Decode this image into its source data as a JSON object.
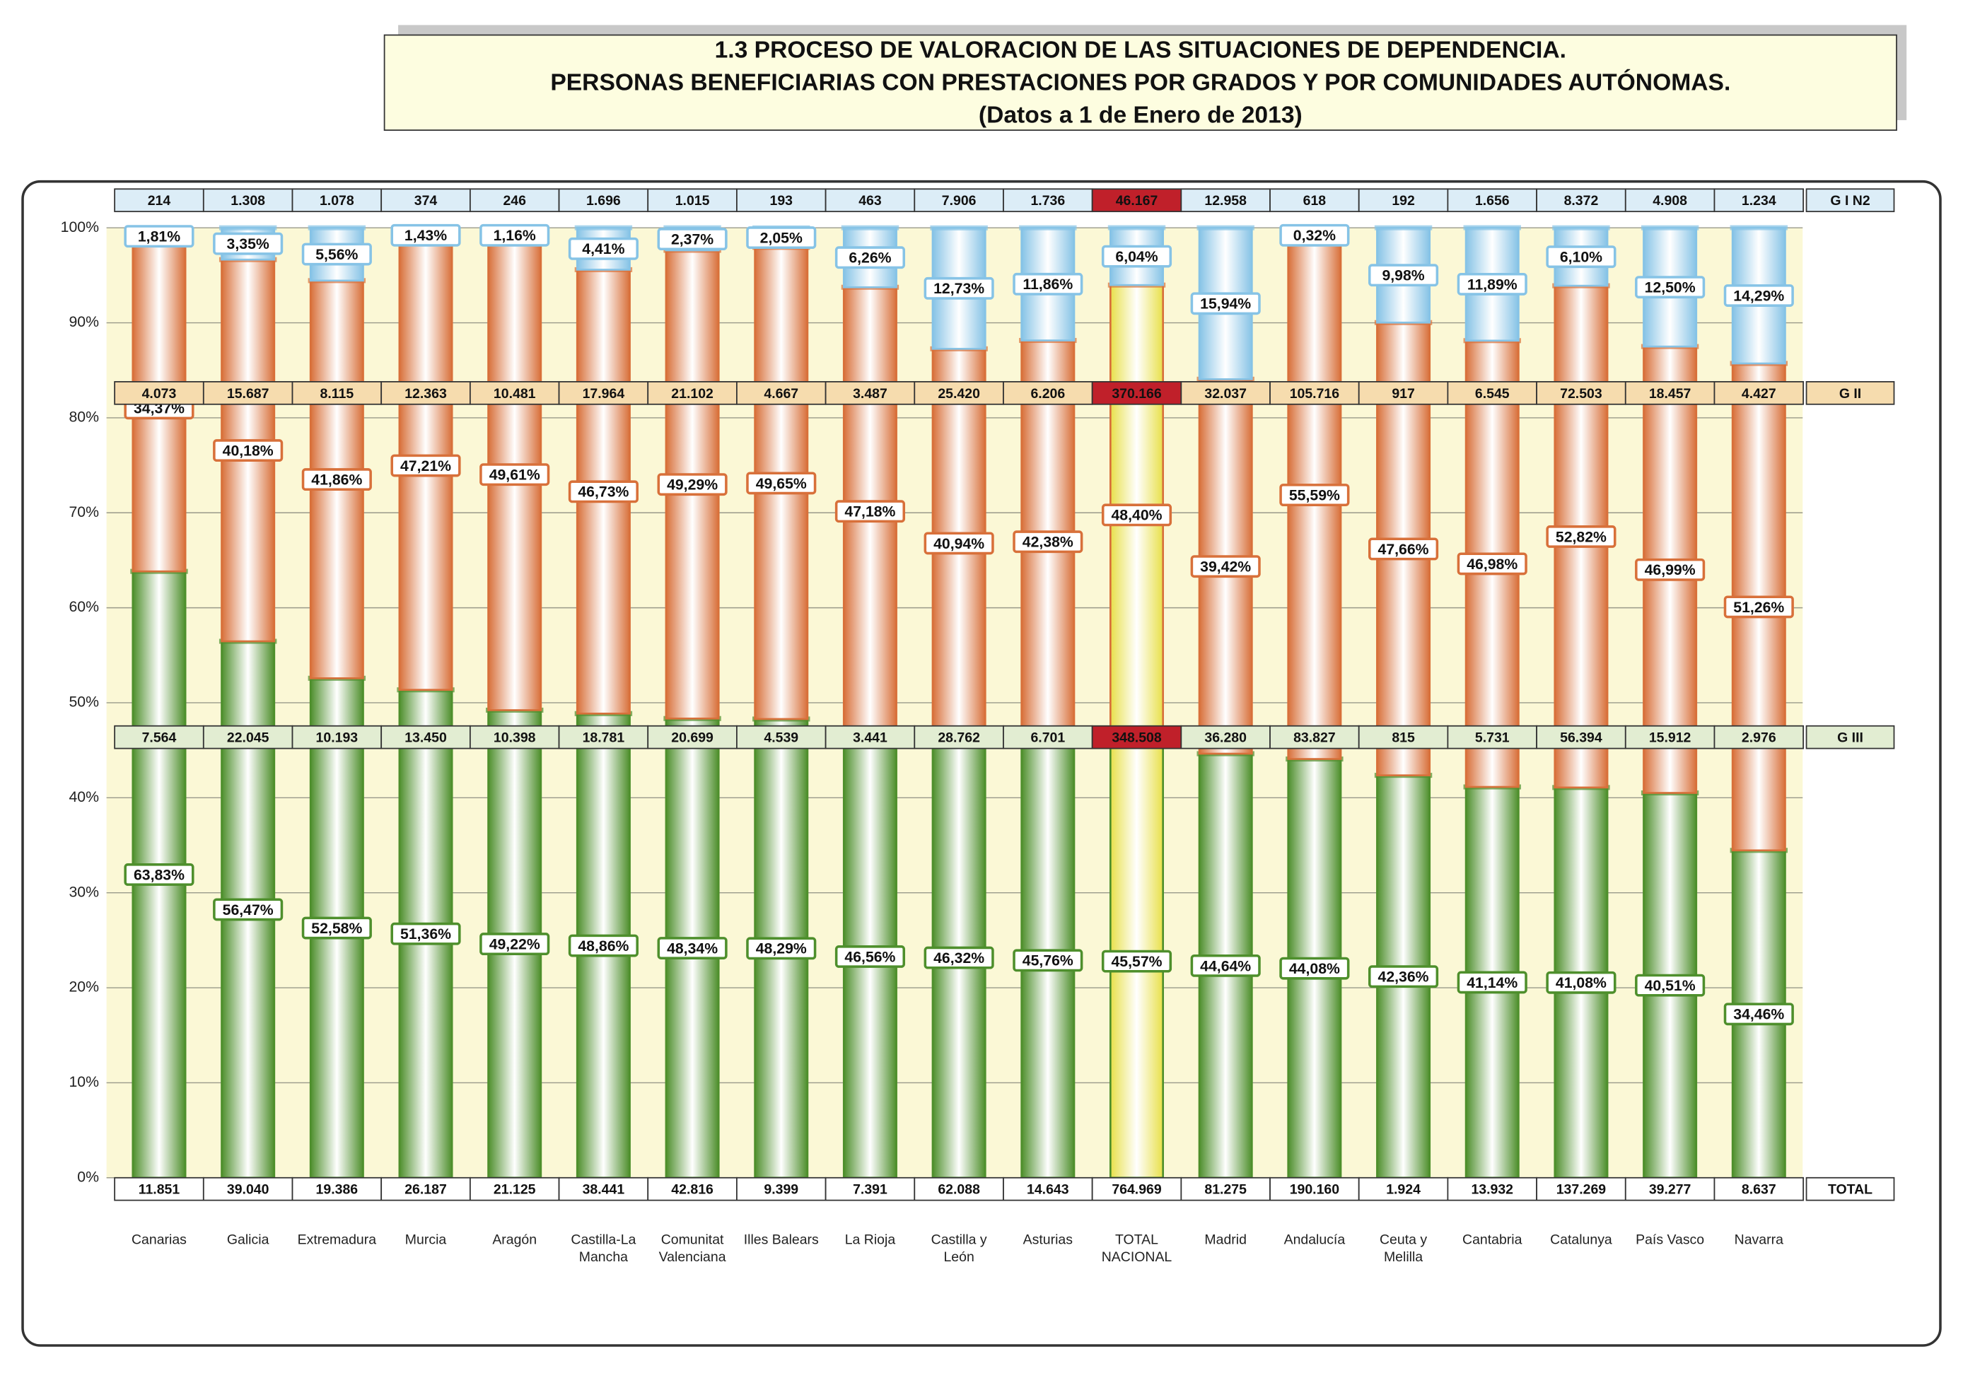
{
  "chart_data": {
    "type": "stacked_bar_100",
    "title": "1.3 PROCESO DE VALORACION DE LAS SITUACIONES DE DEPENDENCIA.",
    "subtitle": "PERSONAS BENEFICIARIAS CON  PRESTACIONES POR GRADOS Y POR COMUNIDADES AUTÓNOMAS.",
    "note": "(Datos a 1 de Enero de 2013)",
    "categories": [
      "Canarias",
      "Galicia",
      "Extremadura",
      "Murcia",
      "Aragón",
      "Castilla-La\nMancha",
      "Comunitat\nValenciana",
      "Illes Balears",
      "La Rioja",
      "Castilla y\nLeón",
      "Asturias",
      "TOTAL\nNACIONAL",
      "Madrid",
      "Andalucía",
      "Ceuta y\nMelilla",
      "Cantabria",
      "Catalunya",
      "País Vasco",
      "Navarra"
    ],
    "highlight": 11,
    "highlight_color": "#e8e04a",
    "ylim": [
      0,
      100
    ],
    "yticks": [
      {
        "value": 0,
        "label": "0%"
      },
      {
        "value": 10,
        "label": "10%"
      },
      {
        "value": 20,
        "label": "20%"
      },
      {
        "value": 30,
        "label": "30%"
      },
      {
        "value": 40,
        "label": "40%"
      },
      {
        "value": 50,
        "label": "50%"
      },
      {
        "value": 60,
        "label": "60%"
      },
      {
        "value": 70,
        "label": "70%"
      },
      {
        "value": 80,
        "label": "80%"
      },
      {
        "value": 90,
        "label": "90%"
      },
      {
        "value": 100,
        "label": "100%"
      }
    ],
    "grid": true,
    "series": [
      {
        "name": "G III",
        "color": "#4e8f2c",
        "cell_color": "#e2edd2",
        "values": [
          63.83,
          56.47,
          52.58,
          51.36,
          49.22,
          48.86,
          48.34,
          48.29,
          46.56,
          46.32,
          45.76,
          45.57,
          44.64,
          44.08,
          42.36,
          41.14,
          41.08,
          40.51,
          34.46
        ],
        "value_labels": [
          "63,83%",
          "56,47%",
          "52,58%",
          "51,36%",
          "49,22%",
          "48,86%",
          "48,34%",
          "48,29%",
          "46,56%",
          "46,32%",
          "45,76%",
          "45,57%",
          "44,64%",
          "44,08%",
          "42,36%",
          "41,14%",
          "41,08%",
          "40,51%",
          "34,46%"
        ],
        "counts": [
          "7.564",
          "22.045",
          "10.193",
          "13.450",
          "10.398",
          "18.781",
          "20.699",
          "4.539",
          "3.441",
          "28.762",
          "6.701",
          "348.508",
          "36.280",
          "83.827",
          "815",
          "5.731",
          "56.394",
          "15.912",
          "2.976"
        ]
      },
      {
        "name": "G II",
        "color": "#d8703a",
        "cell_color": "#f6dcae",
        "values": [
          34.37,
          40.18,
          41.86,
          47.21,
          49.61,
          46.73,
          49.29,
          49.65,
          47.18,
          40.94,
          42.38,
          48.4,
          39.42,
          55.59,
          47.66,
          46.98,
          52.82,
          46.99,
          51.26
        ],
        "value_labels": [
          "34,37%",
          "40,18%",
          "41,86%",
          "47,21%",
          "49,61%",
          "46,73%",
          "49,29%",
          "49,65%",
          "47,18%",
          "40,94%",
          "42,38%",
          "48,40%",
          "39,42%",
          "55,59%",
          "47,66%",
          "46,98%",
          "52,82%",
          "46,99%",
          "51,26%"
        ],
        "counts": [
          "4.073",
          "15.687",
          "8.115",
          "12.363",
          "10.481",
          "17.964",
          "21.102",
          "4.667",
          "3.487",
          "25.420",
          "6.206",
          "370.166",
          "32.037",
          "105.716",
          "917",
          "6.545",
          "72.503",
          "18.457",
          "4.427"
        ]
      },
      {
        "name": "G I N2",
        "color": "#86c3e6",
        "cell_color": "#dcedf7",
        "values": [
          1.81,
          3.35,
          5.56,
          1.43,
          1.16,
          4.41,
          2.37,
          2.05,
          6.26,
          12.73,
          11.86,
          6.04,
          15.94,
          0.32,
          9.98,
          11.89,
          6.1,
          12.5,
          14.29
        ],
        "value_labels": [
          "1,81%",
          "3,35%",
          "5,56%",
          "1,43%",
          "1,16%",
          "4,41%",
          "2,37%",
          "2,05%",
          "6,26%",
          "12,73%",
          "11,86%",
          "6,04%",
          "15,94%",
          "0,32%",
          "9,98%",
          "11,89%",
          "6,10%",
          "12,50%",
          "14,29%"
        ],
        "counts": [
          "214",
          "1.308",
          "1.078",
          "374",
          "246",
          "1.696",
          "1.015",
          "193",
          "463",
          "7.906",
          "1.736",
          "46.167",
          "12.958",
          "618",
          "192",
          "1.656",
          "8.372",
          "4.908",
          "1.234"
        ]
      }
    ],
    "totals": {
      "name": "TOTAL",
      "color": "#c0202a",
      "counts": [
        "11.851",
        "39.040",
        "19.386",
        "26.187",
        "21.125",
        "38.441",
        "42.816",
        "9.399",
        "7.391",
        "62.088",
        "14.643",
        "764.969",
        "81.275",
        "190.160",
        "1.924",
        "13.932",
        "137.269",
        "39.277",
        "8.637"
      ]
    }
  }
}
